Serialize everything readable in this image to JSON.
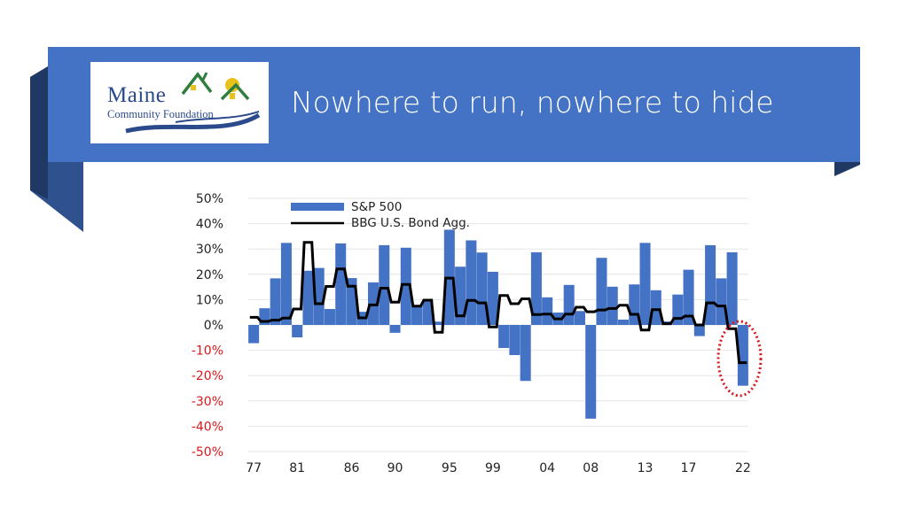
{
  "slide": {
    "title": "Nowhere to run, nowhere to hide",
    "banner_color": "#4472c4"
  },
  "logo": {
    "line1": "Maine",
    "line2": "Community Foundation",
    "text_color": "#2b4a8c",
    "house_colors": [
      "#2f7d3f",
      "#e8c21a"
    ]
  },
  "chart_data": {
    "type": "bar",
    "title": "",
    "xlabel": "",
    "ylabel": "",
    "ylim": [
      -50,
      50
    ],
    "x_tick_labels": [
      "77",
      "81",
      "86",
      "90",
      "95",
      "99",
      "04",
      "08",
      "13",
      "17",
      "22"
    ],
    "x_tick_years": [
      1977,
      1981,
      1986,
      1990,
      1995,
      1999,
      2004,
      2008,
      2013,
      2017,
      2022
    ],
    "y_ticks": [
      50,
      40,
      30,
      20,
      10,
      0,
      -10,
      -20,
      -30,
      -40,
      -50
    ],
    "y_tick_labels": [
      "50%",
      "40%",
      "30%",
      "20%",
      "10%",
      "0%",
      "-10%",
      "-20%",
      "-30%",
      "-40%",
      "-50%"
    ],
    "negative_tick_color": "#d9171b",
    "grid": true,
    "legend_position": "top-left",
    "years": [
      1977,
      1978,
      1979,
      1980,
      1981,
      1982,
      1983,
      1984,
      1985,
      1986,
      1987,
      1988,
      1989,
      1990,
      1991,
      1992,
      1993,
      1994,
      1995,
      1996,
      1997,
      1998,
      1999,
      2000,
      2001,
      2002,
      2003,
      2004,
      2005,
      2006,
      2007,
      2008,
      2009,
      2010,
      2011,
      2012,
      2013,
      2014,
      2015,
      2016,
      2017,
      2018,
      2019,
      2020,
      2021,
      2022
    ],
    "series": [
      {
        "name": "S&P 500",
        "kind": "bar",
        "color": "#4472c4",
        "values": [
          -7.2,
          6.6,
          18.4,
          32.4,
          -4.9,
          21.4,
          22.5,
          6.3,
          32.2,
          18.5,
          5.2,
          16.8,
          31.5,
          -3.1,
          30.5,
          7.6,
          10.1,
          1.3,
          37.6,
          23.0,
          33.4,
          28.6,
          21.0,
          -9.1,
          -11.9,
          -22.1,
          28.7,
          10.9,
          4.9,
          15.8,
          5.5,
          -37.0,
          26.5,
          15.1,
          2.1,
          16.0,
          32.4,
          13.7,
          1.4,
          12.0,
          21.8,
          -4.4,
          31.5,
          18.4,
          28.7,
          -24.0
        ]
      },
      {
        "name": "BBG U.S. Bond Agg.",
        "kind": "line",
        "color": "#000000",
        "values": [
          3.0,
          1.4,
          1.9,
          2.7,
          6.3,
          32.6,
          8.4,
          15.2,
          22.1,
          15.3,
          2.8,
          7.9,
          14.5,
          9.0,
          16.0,
          7.4,
          9.8,
          -2.9,
          18.5,
          3.6,
          9.7,
          8.7,
          -0.8,
          11.6,
          8.4,
          10.3,
          4.1,
          4.3,
          2.4,
          4.3,
          7.0,
          5.2,
          5.9,
          6.5,
          7.8,
          4.2,
          -2.0,
          6.0,
          0.5,
          2.6,
          3.5,
          0.0,
          8.7,
          7.5,
          -1.5,
          -14.9
        ]
      }
    ],
    "annotation": {
      "shape": "dotted-circle",
      "color": "#d9171b",
      "target": "2022"
    }
  }
}
